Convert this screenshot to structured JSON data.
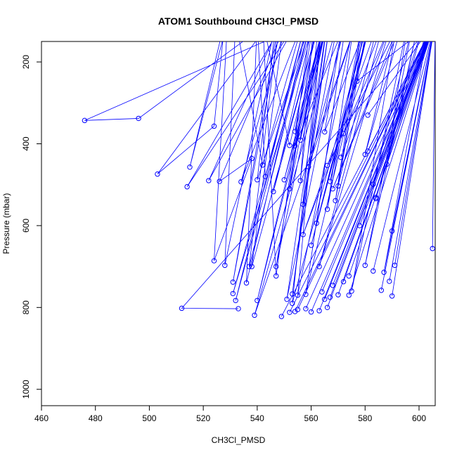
{
  "chart_data": {
    "type": "line",
    "title": "ATOM1 Southbound CH3Cl_PMSD",
    "xlabel": "CH3Cl_PMSD",
    "ylabel": "Pressure (mbar)",
    "xlim": [
      460,
      606
    ],
    "ylim": [
      1040,
      150
    ],
    "y_reversed": true,
    "grid": false,
    "xticks": [
      460,
      480,
      500,
      520,
      540,
      560,
      580,
      600
    ],
    "yticks": [
      200,
      400,
      600,
      800,
      1000
    ],
    "color": "#0000ff",
    "series": [
      {
        "values": [
          [
            560,
            100
          ],
          [
            476,
            343
          ],
          [
            496,
            338
          ],
          [
            545,
            100
          ],
          [
            503,
            474
          ],
          [
            524,
            357
          ],
          [
            528,
            100
          ],
          [
            515,
            457
          ],
          [
            529,
            100
          ],
          [
            524,
            686
          ],
          [
            538,
            436
          ],
          [
            526,
            492
          ],
          [
            551,
            100
          ],
          [
            534,
            493
          ],
          [
            557,
            100
          ],
          [
            542,
            452
          ],
          [
            532,
            100
          ],
          [
            528,
            697
          ],
          [
            547,
            100
          ],
          [
            540,
            488
          ],
          [
            560,
            100
          ],
          [
            537,
            700
          ],
          [
            548,
            100
          ],
          [
            531,
            738
          ],
          [
            549,
            100
          ],
          [
            522,
            490
          ],
          [
            555,
            100
          ],
          [
            514,
            505
          ],
          [
            550,
            100
          ],
          [
            538,
            700
          ],
          [
            563,
            100
          ],
          [
            546,
            517
          ],
          [
            561,
            100
          ],
          [
            531,
            766
          ],
          [
            559,
            100
          ],
          [
            536,
            740
          ],
          [
            540,
            100
          ],
          [
            543,
            480
          ],
          [
            558,
            100
          ],
          [
            532,
            783
          ],
          [
            560,
            100
          ],
          [
            547,
            723
          ],
          [
            542,
            100
          ],
          [
            552,
            404
          ],
          [
            563,
            100
          ],
          [
            556,
            490
          ],
          [
            561,
            100
          ],
          [
            554,
            370
          ],
          [
            565,
            100
          ],
          [
            550,
            488
          ],
          [
            566,
            100
          ],
          [
            540,
            783
          ],
          [
            565,
            100
          ],
          [
            552,
            510
          ],
          [
            562,
            100
          ],
          [
            547,
            700
          ],
          [
            566,
            100
          ],
          [
            556,
            391
          ],
          [
            565,
            100
          ],
          [
            554,
            405
          ],
          [
            573,
            100
          ],
          [
            559,
            456
          ],
          [
            577,
            100
          ],
          [
            539,
            819
          ],
          [
            570,
            100
          ],
          [
            557,
            548
          ],
          [
            567,
            100
          ],
          [
            553,
            767
          ],
          [
            566,
            100
          ],
          [
            551,
            780
          ],
          [
            572,
            100
          ],
          [
            565,
            371
          ],
          [
            581,
            100
          ],
          [
            553,
            790
          ],
          [
            564,
            100
          ],
          [
            555,
            770
          ],
          [
            576,
            100
          ],
          [
            566,
            560
          ],
          [
            579,
            100
          ],
          [
            569,
            539
          ],
          [
            581,
            100
          ],
          [
            560,
            648
          ],
          [
            582,
            100
          ],
          [
            562,
            594
          ],
          [
            573,
            100
          ],
          [
            558,
            768
          ],
          [
            582,
            100
          ],
          [
            567,
            492
          ],
          [
            580,
            100
          ],
          [
            570,
            503
          ],
          [
            585,
            100
          ],
          [
            557,
            622
          ],
          [
            587,
            100
          ],
          [
            563,
            700
          ],
          [
            590,
            100
          ],
          [
            571,
            433
          ],
          [
            590,
            100
          ],
          [
            572,
            375
          ],
          [
            593,
            100
          ],
          [
            566,
            453
          ],
          [
            593,
            100
          ],
          [
            568,
            510
          ],
          [
            594,
            100
          ],
          [
            580,
            426
          ],
          [
            592,
            100
          ],
          [
            575,
            760
          ],
          [
            596,
            100
          ],
          [
            588,
            450
          ],
          [
            600,
            100
          ],
          [
            580,
            697
          ],
          [
            598,
            100
          ],
          [
            583,
            499
          ],
          [
            602,
            100
          ],
          [
            584,
            534
          ],
          [
            604,
            100
          ],
          [
            587,
            714
          ],
          [
            606,
            100
          ],
          [
            590,
            613
          ],
          [
            606,
            100
          ],
          [
            589,
            736
          ],
          [
            606,
            100
          ],
          [
            591,
            697
          ],
          [
            606,
            100
          ],
          [
            583,
            711
          ],
          [
            606,
            100
          ],
          [
            590,
            772
          ],
          [
            606,
            100
          ],
          [
            581,
            330
          ],
          [
            606,
            100
          ],
          [
            577,
            247
          ],
          [
            606,
            100
          ],
          [
            584,
            531
          ],
          [
            606,
            100
          ],
          [
            586,
            758
          ],
          [
            606,
            100
          ],
          [
            581,
            418
          ],
          [
            606,
            100
          ],
          [
            574,
            723
          ],
          [
            606,
            100
          ],
          [
            605,
            656
          ],
          [
            606,
            100
          ],
          [
            578,
            600
          ],
          [
            606,
            100
          ],
          [
            572,
            737
          ],
          [
            606,
            100
          ],
          [
            568,
            746
          ],
          [
            606,
            100
          ],
          [
            574,
            770
          ],
          [
            606,
            100
          ],
          [
            570,
            769
          ],
          [
            606,
            100
          ],
          [
            567,
            775
          ],
          [
            606,
            100
          ],
          [
            564,
            762
          ],
          [
            606,
            100
          ],
          [
            565,
            780
          ],
          [
            606,
            100
          ],
          [
            566,
            800
          ],
          [
            606,
            100
          ],
          [
            563,
            808
          ],
          [
            606,
            100
          ],
          [
            560,
            811
          ],
          [
            606,
            100
          ],
          [
            558,
            803
          ],
          [
            606,
            100
          ],
          [
            555,
            805
          ],
          [
            606,
            100
          ],
          [
            554,
            810
          ],
          [
            606,
            100
          ],
          [
            552,
            812
          ],
          [
            606,
            100
          ],
          [
            549,
            822
          ],
          [
            606,
            100
          ],
          [
            512,
            802
          ],
          [
            533,
            803
          ]
        ]
      }
    ]
  }
}
